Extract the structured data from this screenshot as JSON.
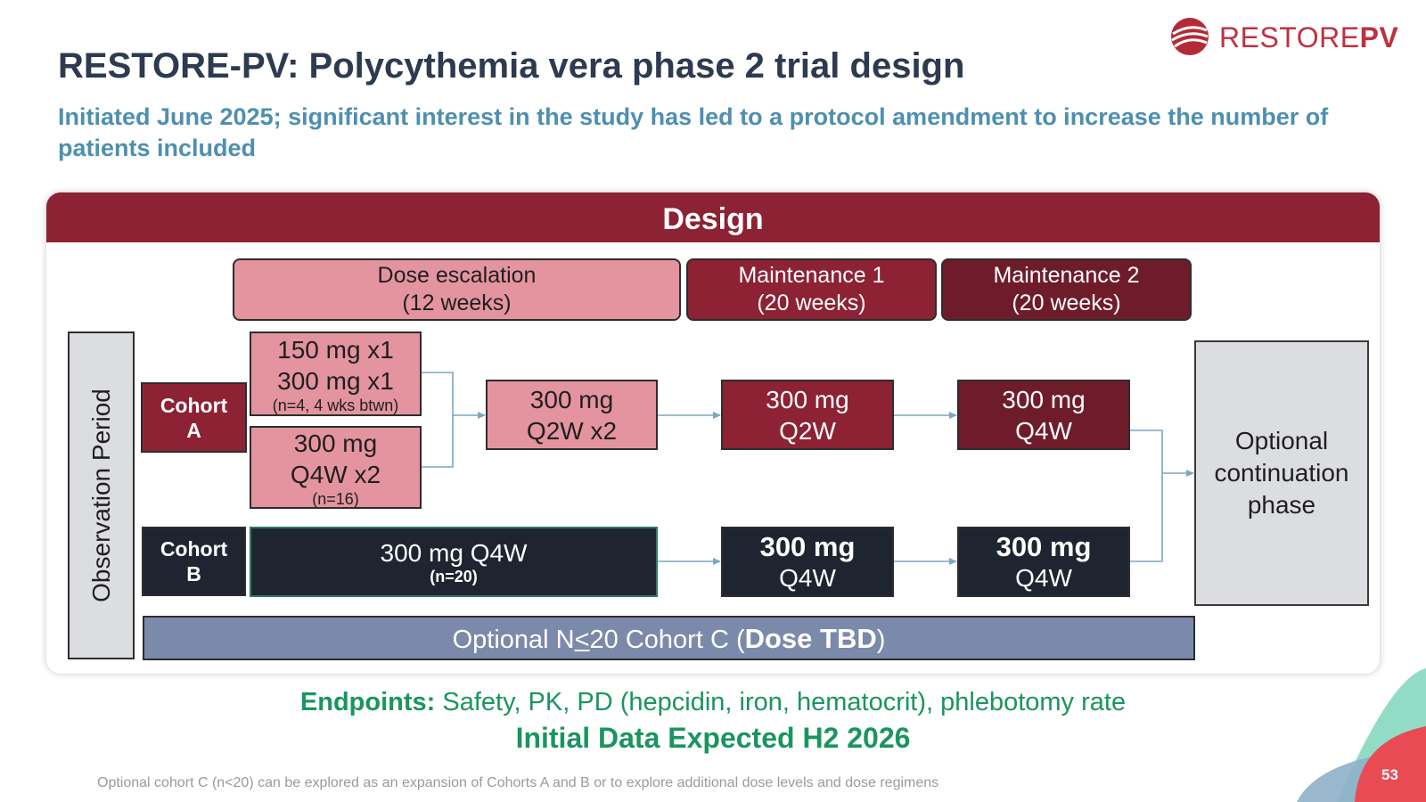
{
  "title": "RESTORE-PV: Polycythemia vera phase 2 trial design",
  "subtitle": "Initiated June 2025; significant interest in the study has led to a protocol amendment to increase the number of patients included",
  "logo": {
    "text_light": "RESTORE",
    "text_bold": "PV",
    "icon": "globe-swoosh-icon"
  },
  "design": {
    "header": "Design",
    "phases": {
      "dose_escalation": {
        "line1": "Dose escalation",
        "line2": "(12 weeks)"
      },
      "maintenance1": {
        "line1": "Maintenance 1",
        "line2": "(20 weeks)"
      },
      "maintenance2": {
        "line1": "Maintenance 2",
        "line2": "(20 weeks)"
      }
    },
    "observation_period": "Observation Period",
    "cohort_a": {
      "label_line1": "Cohort",
      "label_line2": "A",
      "arm1": {
        "line1": "150 mg x1",
        "line2": "300 mg x1",
        "note": "(n=4, 4 wks btwn)"
      },
      "arm2": {
        "line1": "300 mg",
        "line2": "Q4W x2",
        "note": "(n=16)"
      },
      "escalation_end": {
        "line1": "300 mg",
        "line2": "Q2W x2"
      },
      "maintenance1": {
        "line1": "300 mg",
        "line2": "Q2W"
      },
      "maintenance2": {
        "line1": "300 mg",
        "line2": "Q4W"
      }
    },
    "cohort_b": {
      "label_line1": "Cohort",
      "label_line2": "B",
      "escalation": {
        "line1": "300 mg Q4W",
        "note": "(n=20)"
      },
      "maintenance1": {
        "line1": "300 mg",
        "line2": "Q4W"
      },
      "maintenance2": {
        "line1": "300 mg",
        "line2": "Q4W"
      }
    },
    "cohort_c": {
      "prefix": "Optional N",
      "leq": "<",
      "middle": "20 Cohort C (",
      "bold": "Dose TBD",
      "suffix": ")"
    },
    "optional_phase": {
      "line1": "Optional",
      "line2": "continuation",
      "line3": "phase"
    }
  },
  "endpoints": {
    "label": "Endpoints:",
    "text": " Safety, PK, PD (hepcidin, iron, hematocrit), phlebotomy rate"
  },
  "expected": "Initial Data Expected H2 2026",
  "footnote": "Optional cohort C (n<20) can be explored as an expansion of Cohorts A and B or to explore additional dose levels and dose regimens",
  "page_number": "53",
  "colors": {
    "maroon": "#8c2233",
    "pink": "#e4949e",
    "navy": "#1f2530",
    "slate": "#7b8aaa",
    "teal": "#1a9560",
    "blue_subtitle": "#4e8fb0"
  }
}
